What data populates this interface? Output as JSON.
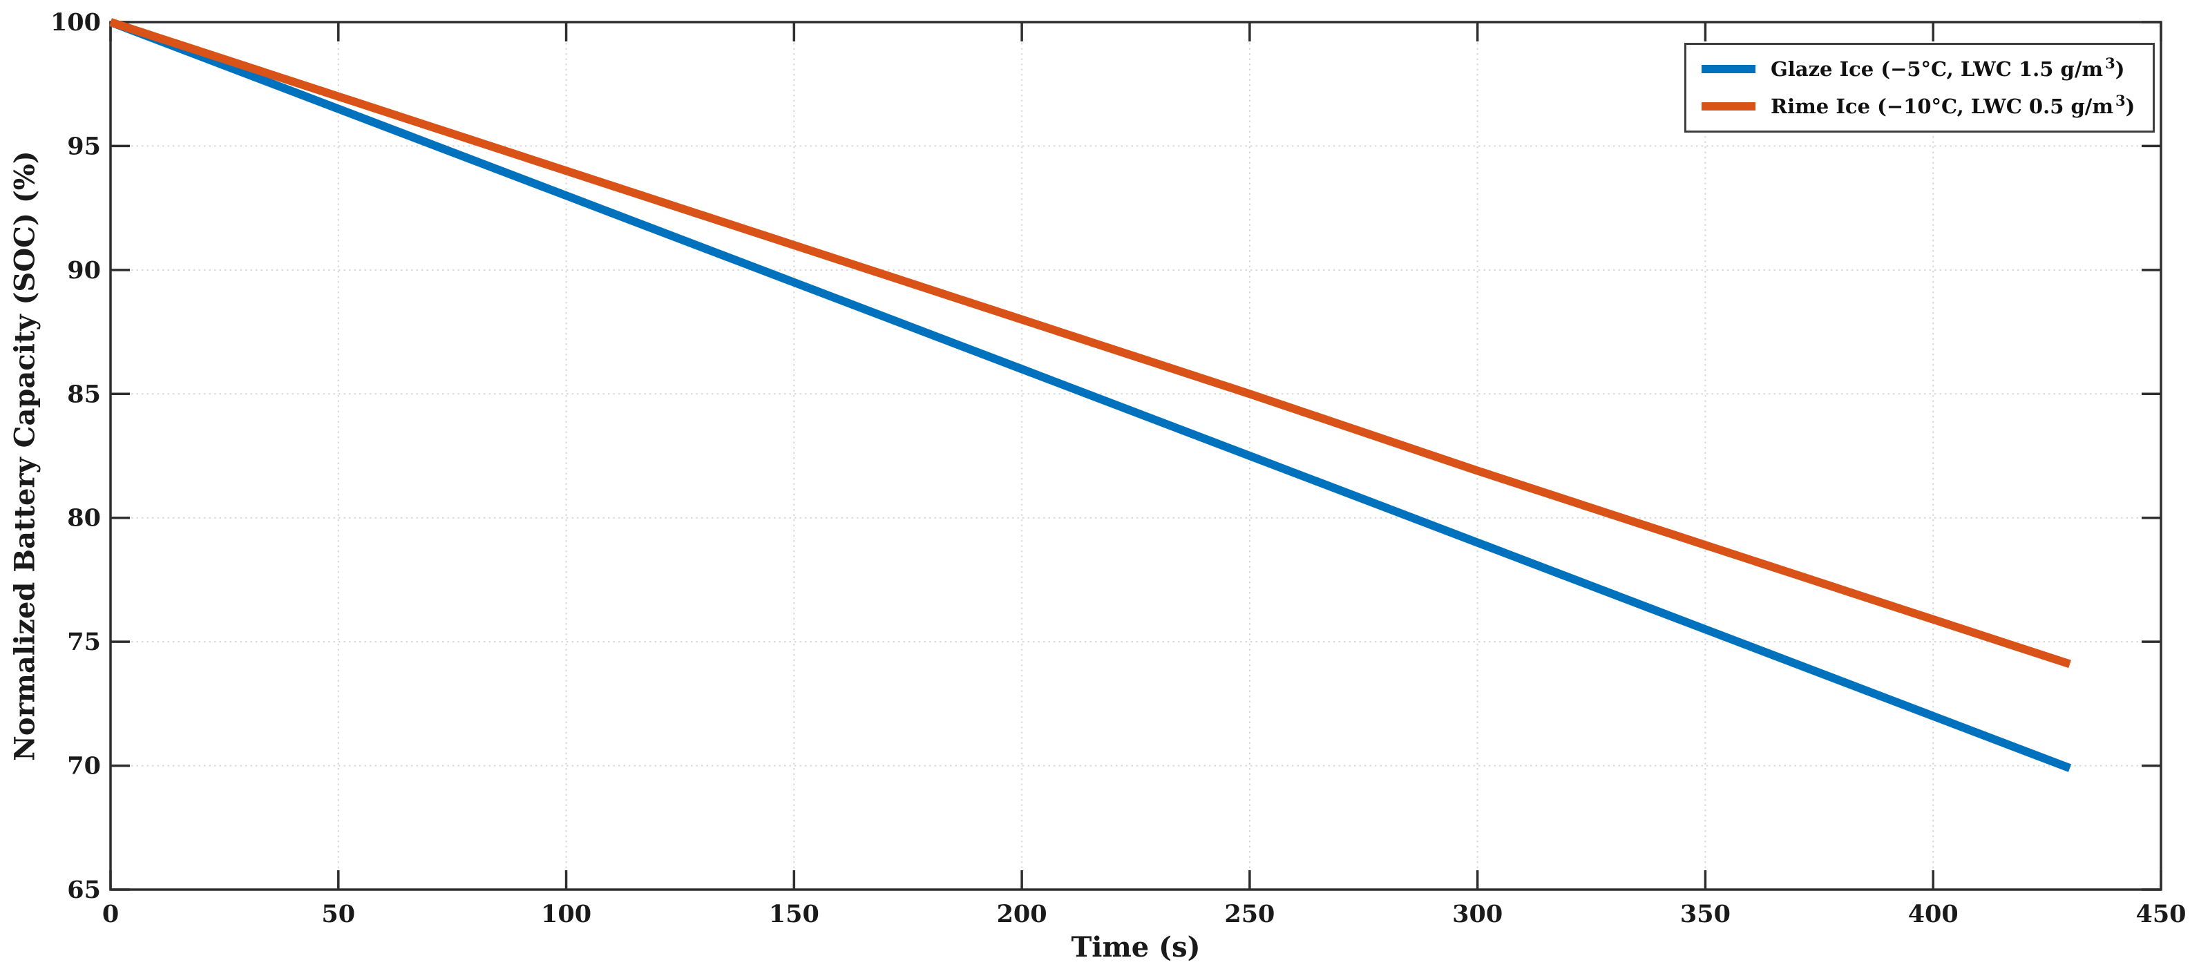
{
  "figure": {
    "background": "#ffffff",
    "axis_color": "#2e2e2e",
    "grid_color": "#d8d8d8",
    "text_color": "#1a1a1a",
    "legend_border_color": "#3d3d3d"
  },
  "chart_data": {
    "type": "line",
    "title": "",
    "xlabel": "Time (s)",
    "ylabel": "Normalized Battery Capacity (SOC) (%)",
    "xlim": [
      0,
      450
    ],
    "ylim": [
      65,
      100
    ],
    "xticks": [
      0,
      50,
      100,
      150,
      200,
      250,
      300,
      350,
      400,
      450
    ],
    "yticks": [
      65,
      70,
      75,
      80,
      85,
      90,
      95,
      100
    ],
    "grid": "dotted",
    "box": true,
    "tick_direction": "in",
    "legend_position": "top-right inside",
    "series": [
      {
        "name": "Glaze Ice (−5°C, LWC 1.5 g/m³)",
        "legend_label": {
          "pre": "Glaze Ice (−5°C, LWC 1.5 g/m",
          "sup": "3",
          "post": ")"
        },
        "color": "#0072BD",
        "line_width": 12,
        "x": [
          0,
          50,
          100,
          150,
          200,
          250,
          300,
          350,
          400,
          430
        ],
        "y": [
          100,
          96.5,
          93.0,
          89.5,
          86.0,
          82.5,
          79.0,
          75.5,
          72.0,
          69.9
        ]
      },
      {
        "name": "Rime Ice (−10°C, LWC 0.5 g/m³)",
        "legend_label": {
          "pre": "Rime Ice (−10°C, LWC 0.5 g/m",
          "sup": "3",
          "post": ")"
        },
        "color": "#D95319",
        "line_width": 12,
        "x": [
          0,
          50,
          100,
          150,
          200,
          250,
          300,
          350,
          400,
          430
        ],
        "y": [
          100,
          97.0,
          94.0,
          91.0,
          88.0,
          85.0,
          81.9,
          78.9,
          75.9,
          74.1
        ]
      }
    ]
  }
}
